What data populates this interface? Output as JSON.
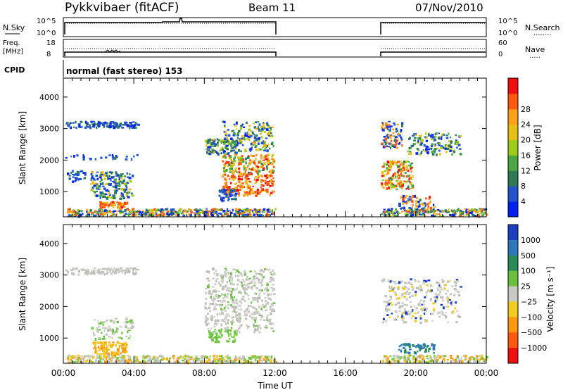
{
  "header": {
    "title": "Pykkvibaer (fitACF)",
    "beam": "Beam 11",
    "date": "07/Nov/2010"
  },
  "top_panels": {
    "nsky_label": "N.Sky",
    "nsearch_label": "N.Search",
    "nsky_ticks": [
      "10^5",
      "10^0"
    ],
    "nsearch_ticks": [
      "10^5",
      "10^0"
    ],
    "freq_label_1": "Freq.",
    "freq_label_2": "[MHz]",
    "freq_ticks": [
      "18",
      "8"
    ],
    "nave_label": "Nave",
    "nave_ticks": [
      "60",
      "0"
    ],
    "cpid_label": "CPID",
    "cpid_value": "normal (fast stereo) 153"
  },
  "chart_data": [
    {
      "type": "heatmap",
      "name": "power",
      "ylabel": "Slant Range [km]",
      "yticks": [
        1000,
        2000,
        3000,
        4000
      ],
      "ylim": [
        200,
        4600
      ],
      "xlim_hours": [
        0,
        24
      ],
      "colorbar": {
        "label": "Power [dB]",
        "ticks": [
          "4",
          "8",
          "12",
          "16",
          "20",
          "24",
          "28"
        ],
        "colors": [
          "#0022ee",
          "#2255cc",
          "#2d7a55",
          "#4aa640",
          "#9fcc1a",
          "#e8c015",
          "#ffa01a",
          "#ff5a10",
          "#ee1010"
        ]
      }
    },
    {
      "type": "heatmap",
      "name": "velocity",
      "ylabel": "Slant Range [km]",
      "yticks": [
        1000,
        2000,
        3000,
        4000
      ],
      "ylim": [
        200,
        4600
      ],
      "xlim_hours": [
        0,
        24
      ],
      "xlabel": "Time UT",
      "xticks": [
        "00:00",
        "04:00",
        "08:00",
        "12:00",
        "16:00",
        "20:00",
        "00:00"
      ],
      "colorbar": {
        "label": "Velocity [m s⁻¹]",
        "ticks": [
          "1000",
          "500",
          "100",
          "25",
          "−25",
          "−100",
          "−500",
          "−1000"
        ],
        "colors": [
          "#1b3fbf",
          "#2f78b8",
          "#2a8a5a",
          "#6cc040",
          "#c9c9c4",
          "#f0cc20",
          "#ff9a10",
          "#ff5a10",
          "#ee1010"
        ]
      }
    }
  ]
}
